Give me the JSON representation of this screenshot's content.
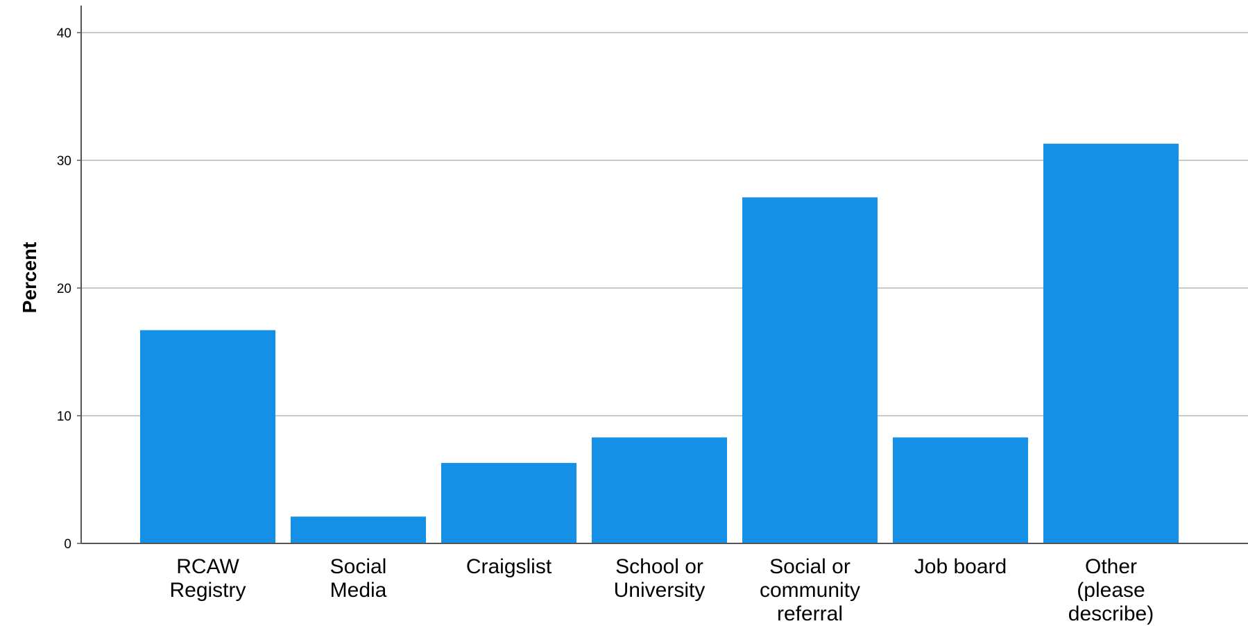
{
  "chart_data": {
    "type": "bar",
    "title": "",
    "xlabel": "",
    "ylabel": "Percent",
    "categories": [
      [
        "RCAW",
        "Registry"
      ],
      [
        "Social",
        "Media"
      ],
      [
        "Craigslist"
      ],
      [
        "School or",
        "University"
      ],
      [
        "Social or",
        "community",
        "referral"
      ],
      [
        "Job board"
      ],
      [
        "Other",
        "(please",
        "describe)"
      ]
    ],
    "values": [
      16.7,
      2.1,
      6.3,
      8.3,
      27.1,
      8.3,
      31.3
    ],
    "ylim": [
      0,
      40
    ],
    "yticks": [
      0,
      10,
      20,
      30,
      40
    ],
    "grid": true,
    "bar_color": "#1490e6",
    "grid_color": "#c8c8c8",
    "axis_color": "#555555"
  }
}
